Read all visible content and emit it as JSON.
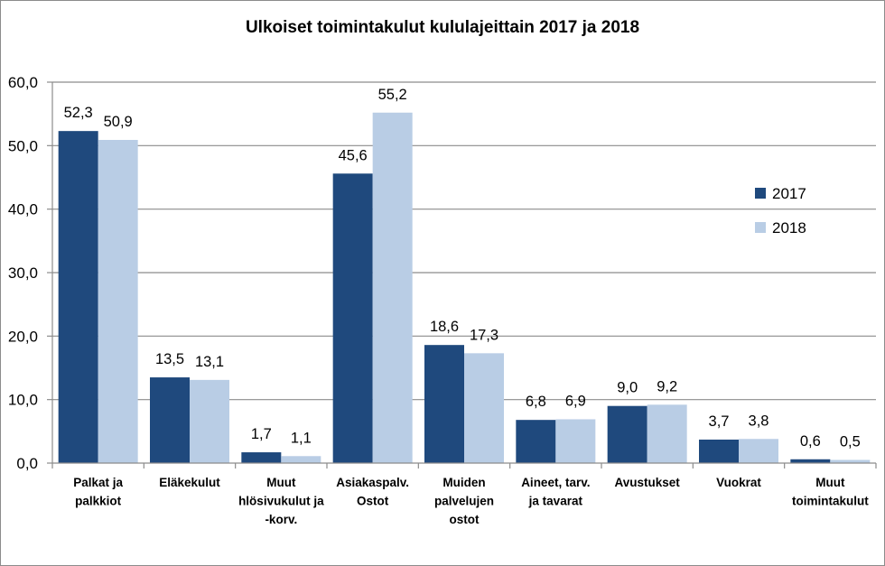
{
  "chart_data": {
    "type": "bar",
    "title": "Ulkoiset  toimintakulut  kululajeittain  2017 ja 2018",
    "xlabel": "",
    "ylabel": "",
    "ylim": [
      0,
      60
    ],
    "yticks": [
      "0,0",
      "10,0",
      "20,0",
      "30,0",
      "40,0",
      "50,0",
      "60,0"
    ],
    "grid": true,
    "legend_position": "right",
    "categories": [
      [
        "Palkat ja",
        "palkkiot"
      ],
      [
        "Eläkekulut"
      ],
      [
        "Muut",
        "hlösivukulut ja",
        "-korv."
      ],
      [
        "Asiakaspalv.",
        "Ostot"
      ],
      [
        "Muiden",
        "palvelujen",
        "ostot"
      ],
      [
        "Aineet, tarv.",
        "ja tavarat"
      ],
      [
        "Avustukset"
      ],
      [
        "Vuokrat"
      ],
      [
        "Muut",
        "toimintakulut"
      ]
    ],
    "series": [
      {
        "name": "2017",
        "color": "#1f497d",
        "values": [
          52.3,
          13.5,
          1.7,
          45.6,
          18.6,
          6.8,
          9.0,
          3.7,
          0.6
        ],
        "labels": [
          "52,3",
          "13,5",
          "1,7",
          "45,6",
          "18,6",
          "6,8",
          "9,0",
          "3,7",
          "0,6"
        ]
      },
      {
        "name": "2018",
        "color": "#b9cde5",
        "values": [
          50.9,
          13.1,
          1.1,
          55.2,
          17.3,
          6.9,
          9.2,
          3.8,
          0.5
        ],
        "labels": [
          "50,9",
          "13,1",
          "1,1",
          "55,2",
          "17,3",
          "6,9",
          "9,2",
          "3,8",
          "0,5"
        ]
      }
    ]
  }
}
